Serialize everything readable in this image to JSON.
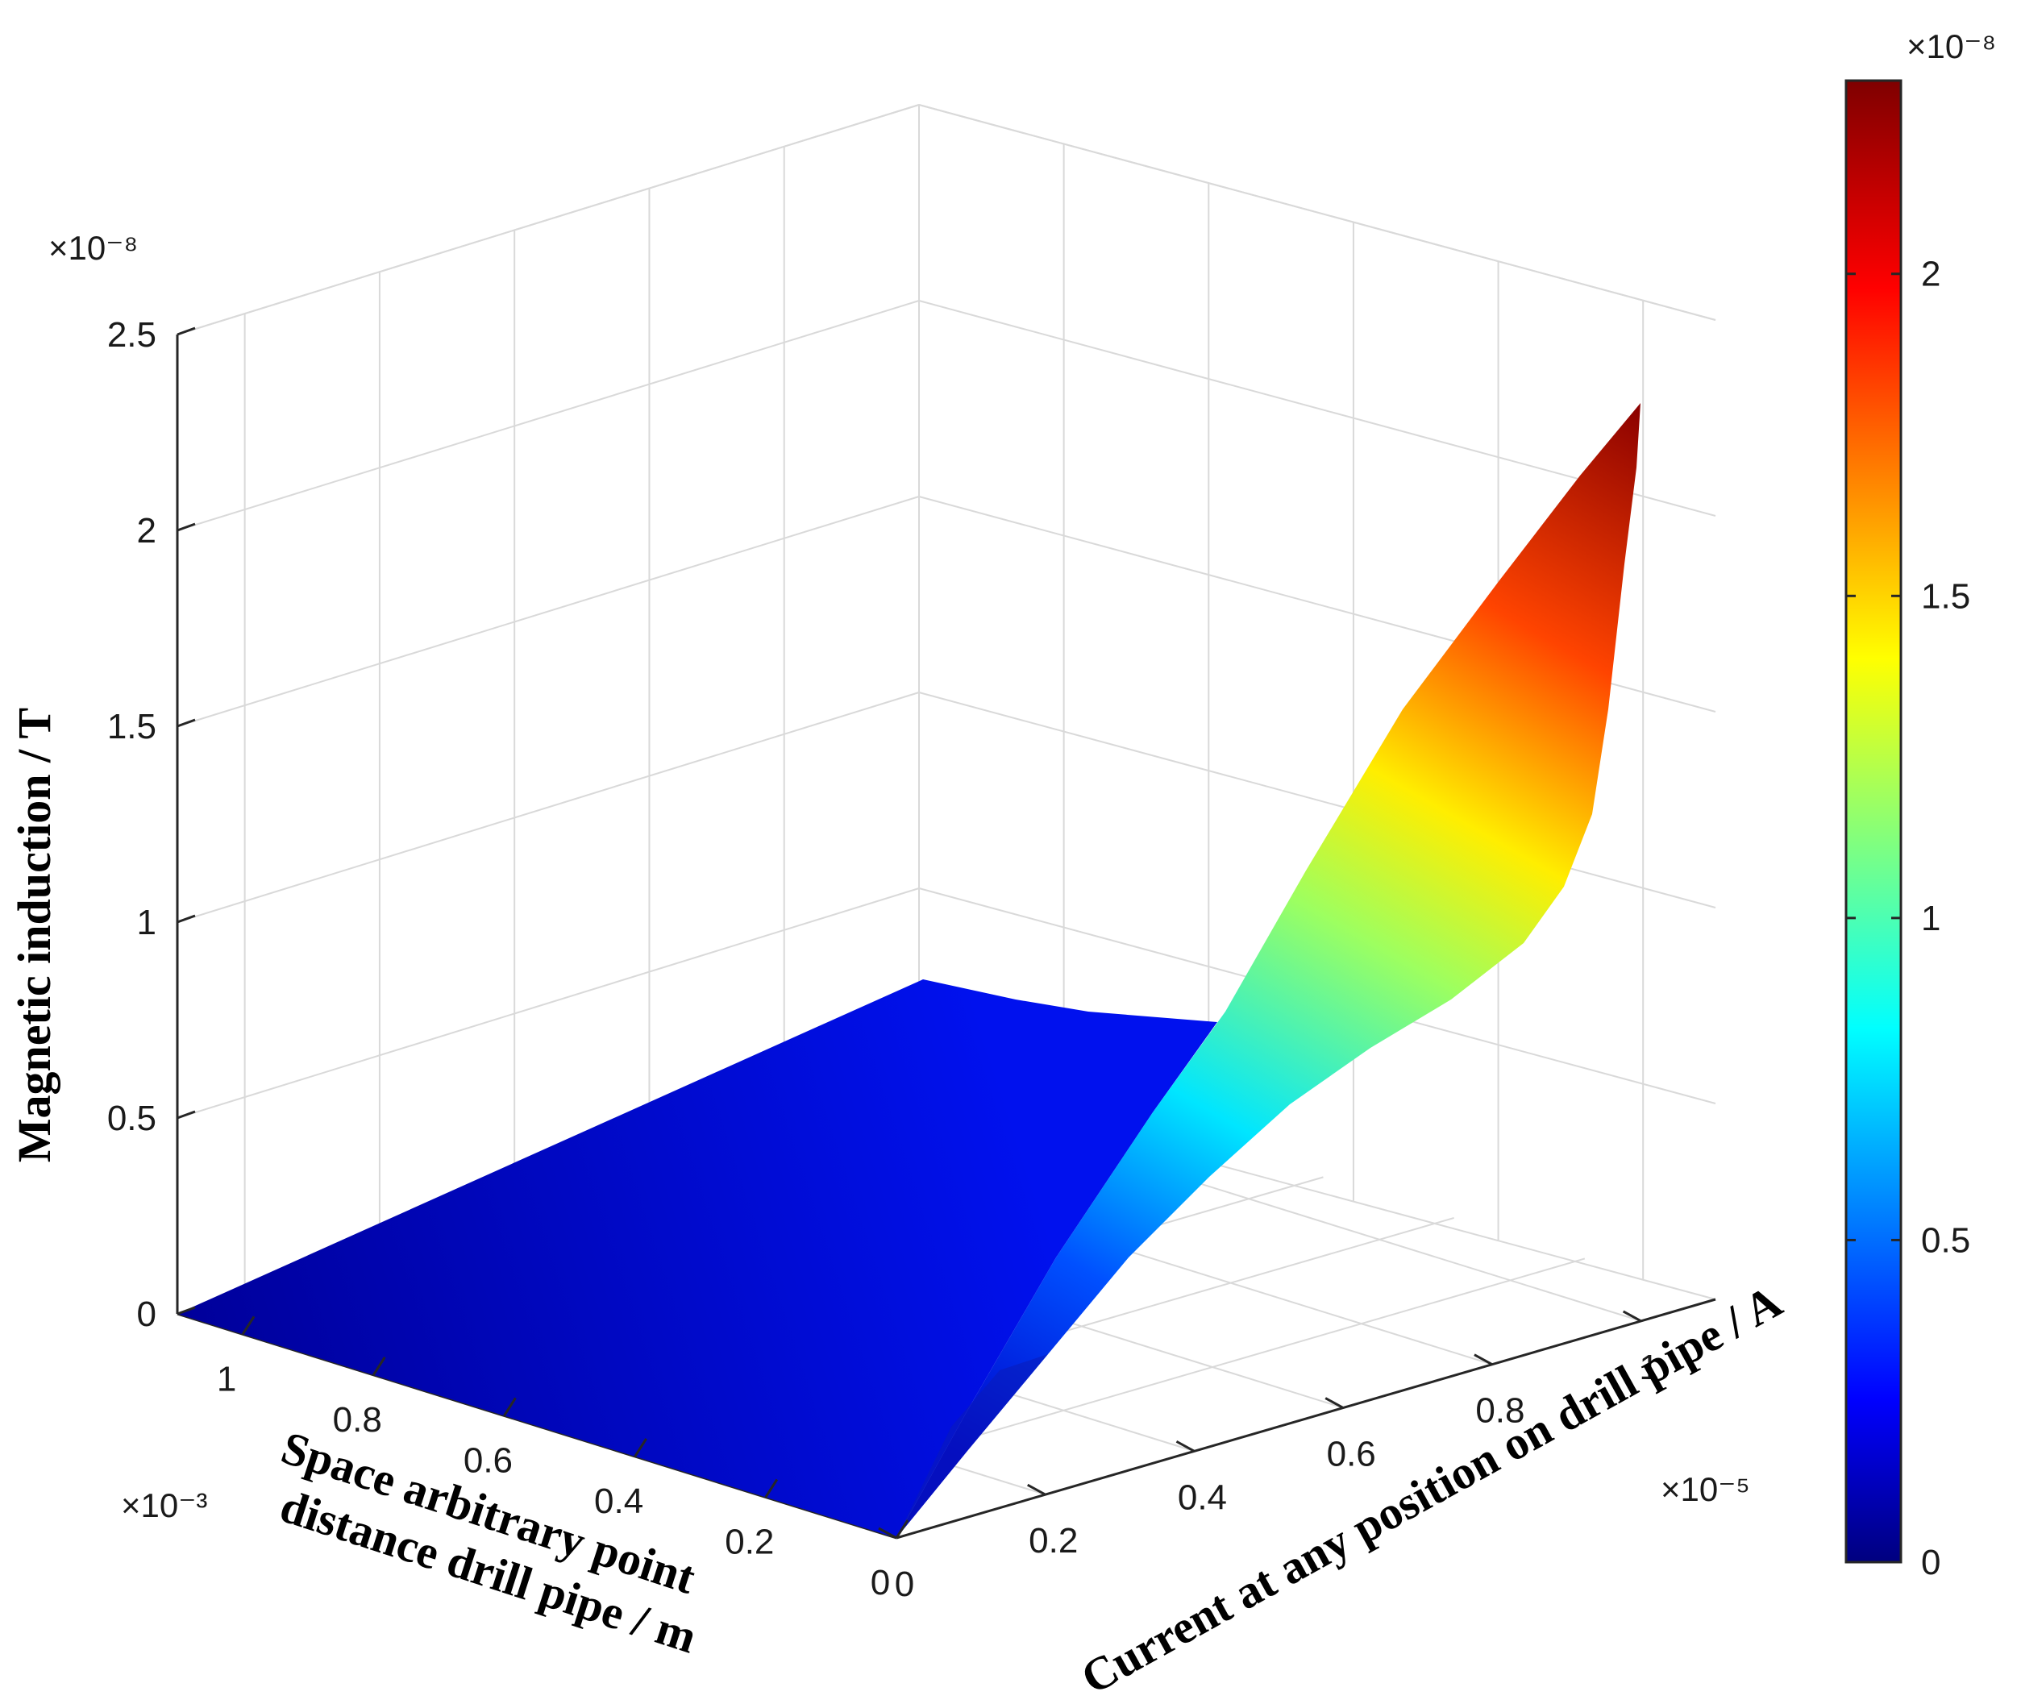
{
  "chart_data": {
    "type": "surface",
    "title": "",
    "zlabel": "Magnetic induction / T",
    "ylabel": "Space arbitrary point distance drill pipe / m",
    "ylabel_lines": [
      "Space arbitrary point",
      "distance drill pipe / m"
    ],
    "xlabel": "Current at any position on drill pipe / A",
    "z_exponent": "×10⁻⁸",
    "y_exponent": "×10⁻³",
    "x_exponent": "×10⁻⁵",
    "colorbar_exponent": "×10⁻⁸",
    "z_ticks": [
      "0",
      "0.5",
      "1",
      "1.5",
      "2",
      "2.5"
    ],
    "y_ticks": [
      "0",
      "0.2",
      "0.4",
      "0.6",
      "0.8",
      "1"
    ],
    "x_ticks": [
      "0",
      "0.2",
      "0.4",
      "0.6",
      "0.8",
      "1"
    ],
    "colorbar_ticks": [
      "0",
      "0.5",
      "1",
      "1.5",
      "2"
    ],
    "zlim": [
      0,
      2.5
    ],
    "ylim": [
      0,
      1.1
    ],
    "xlim": [
      0,
      1.1
    ],
    "colormap": "jet",
    "colorbar_range": [
      0,
      2.3
    ],
    "grid": true,
    "surface_peak": {
      "x": 1.0,
      "y": 0.0,
      "z": 2.3
    },
    "surface_samples": [
      {
        "x": 0.0,
        "y": 0.0,
        "z": 0.0
      },
      {
        "x": 0.0,
        "y": 1.0,
        "z": 0.0
      },
      {
        "x": 0.2,
        "y": 0.0,
        "z": 0.1
      },
      {
        "x": 0.4,
        "y": 0.0,
        "z": 0.35
      },
      {
        "x": 0.6,
        "y": 0.0,
        "z": 0.7
      },
      {
        "x": 0.8,
        "y": 0.0,
        "z": 1.1
      },
      {
        "x": 1.0,
        "y": 0.0,
        "z": 2.3
      },
      {
        "x": 1.0,
        "y": 1.0,
        "z": 0.0
      }
    ]
  }
}
